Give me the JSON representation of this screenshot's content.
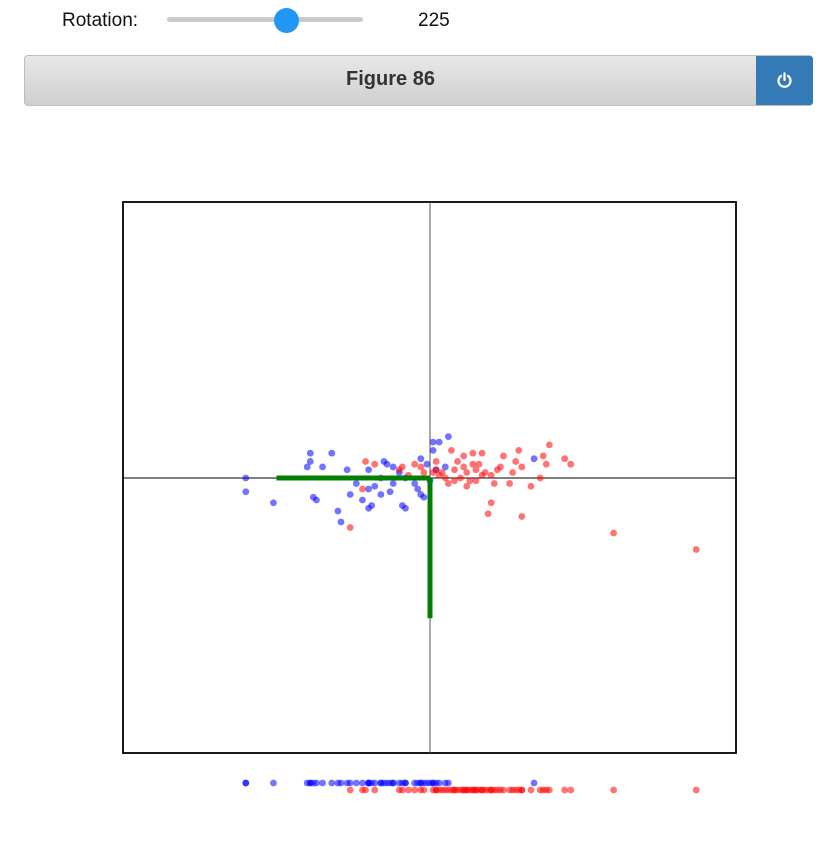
{
  "slider": {
    "label": "Rotation:",
    "value": "225",
    "min": 0,
    "max": 360,
    "current": 225
  },
  "figure": {
    "title": "Figure 86",
    "power_icon": "power-icon"
  },
  "colors": {
    "class_a": "#0000ff",
    "class_b": "#ff0000",
    "axes_vector": "#008000",
    "slider_handle": "#2196f3",
    "button": "#337ab7"
  },
  "chart_data": {
    "type": "scatter",
    "title": "",
    "xlabel": "",
    "ylabel": "",
    "xlim": [
      -1,
      1
    ],
    "ylim": [
      -1,
      1
    ],
    "grid": false,
    "crosshair": true,
    "vectors": [
      {
        "name": "axis-1",
        "x": -0.5,
        "y": 0.0
      },
      {
        "name": "axis-2",
        "x": 0.0,
        "y": -0.51
      }
    ],
    "series": [
      {
        "name": "blue",
        "color": "#0000ff",
        "points": [
          [
            -0.6,
            0.0
          ],
          [
            -0.6,
            -0.05
          ],
          [
            -0.51,
            -0.09
          ],
          [
            -0.39,
            0.06
          ],
          [
            -0.39,
            0.09
          ],
          [
            -0.32,
            0.09
          ],
          [
            -0.4,
            0.04
          ],
          [
            -0.35,
            0.04
          ],
          [
            -0.27,
            0.03
          ],
          [
            -0.2,
            0.03
          ],
          [
            -0.38,
            -0.07
          ],
          [
            -0.37,
            -0.08
          ],
          [
            -0.3,
            -0.12
          ],
          [
            -0.29,
            -0.16
          ],
          [
            -0.26,
            -0.06
          ],
          [
            -0.24,
            -0.02
          ],
          [
            -0.22,
            -0.08
          ],
          [
            -0.2,
            -0.04
          ],
          [
            -0.18,
            -0.03
          ],
          [
            -0.2,
            -0.11
          ],
          [
            -0.16,
            -0.06
          ],
          [
            -0.19,
            -0.1
          ],
          [
            -0.13,
            -0.05
          ],
          [
            -0.12,
            -0.02
          ],
          [
            -0.1,
            0.02
          ],
          [
            -0.09,
            -0.1
          ],
          [
            -0.08,
            -0.11
          ],
          [
            -0.15,
            0.06
          ],
          [
            -0.14,
            0.05
          ],
          [
            -0.12,
            0.04
          ],
          [
            -0.05,
            -0.02
          ],
          [
            -0.04,
            -0.04
          ],
          [
            -0.03,
            -0.06
          ],
          [
            -0.02,
            -0.07
          ],
          [
            -0.01,
            0.05
          ],
          [
            -0.03,
            0.07
          ],
          [
            0.01,
            0.13
          ],
          [
            0.01,
            0.1
          ],
          [
            0.02,
            0.03
          ],
          [
            0.03,
            0.13
          ],
          [
            0.06,
            0.15
          ],
          [
            0.34,
            0.07
          ],
          [
            0.0,
            -0.01
          ],
          [
            0.05,
            0.04
          ],
          [
            -0.08,
            0.0
          ],
          [
            -0.16,
            0.0
          ]
        ]
      },
      {
        "name": "red",
        "color": "#ff0000",
        "points": [
          [
            -0.26,
            -0.18
          ],
          [
            -0.22,
            -0.04
          ],
          [
            -0.21,
            0.06
          ],
          [
            -0.18,
            0.05
          ],
          [
            -0.1,
            0.03
          ],
          [
            -0.07,
            0.01
          ],
          [
            -0.09,
            0.04
          ],
          [
            -0.05,
            0.05
          ],
          [
            -0.03,
            0.04
          ],
          [
            -0.02,
            0.02
          ],
          [
            0.01,
            0.02
          ],
          [
            0.02,
            0.03
          ],
          [
            0.03,
            0.01
          ],
          [
            0.04,
            0.02
          ],
          [
            0.05,
            0.0
          ],
          [
            0.06,
            -0.02
          ],
          [
            0.08,
            -0.01
          ],
          [
            0.08,
            0.03
          ],
          [
            0.09,
            0.06
          ],
          [
            0.1,
            0.0
          ],
          [
            0.11,
            0.04
          ],
          [
            0.12,
            0.02
          ],
          [
            0.12,
            -0.03
          ],
          [
            0.13,
            -0.01
          ],
          [
            0.14,
            0.05
          ],
          [
            0.15,
            0.03
          ],
          [
            0.15,
            -0.01
          ],
          [
            0.17,
            0.01
          ],
          [
            0.18,
            0.02
          ],
          [
            0.17,
            0.09
          ],
          [
            0.11,
            0.08
          ],
          [
            0.14,
            0.09
          ],
          [
            0.16,
            0.05
          ],
          [
            0.2,
            0.01
          ],
          [
            0.21,
            -0.02
          ],
          [
            0.22,
            0.03
          ],
          [
            0.23,
            0.04
          ],
          [
            0.24,
            0.08
          ],
          [
            0.27,
            0.02
          ],
          [
            0.28,
            0.06
          ],
          [
            0.2,
            -0.09
          ],
          [
            0.19,
            -0.13
          ],
          [
            0.26,
            -0.02
          ],
          [
            0.29,
            0.1
          ],
          [
            0.3,
            0.04
          ],
          [
            0.33,
            -0.03
          ],
          [
            0.36,
            0.0
          ],
          [
            0.37,
            0.08
          ],
          [
            0.38,
            0.05
          ],
          [
            0.39,
            0.12
          ],
          [
            0.44,
            0.07
          ],
          [
            0.46,
            0.05
          ],
          [
            0.3,
            -0.14
          ],
          [
            0.6,
            -0.2
          ],
          [
            0.87,
            -0.26
          ],
          [
            0.07,
            0.1
          ],
          [
            0.02,
            0.06
          ]
        ]
      }
    ]
  }
}
